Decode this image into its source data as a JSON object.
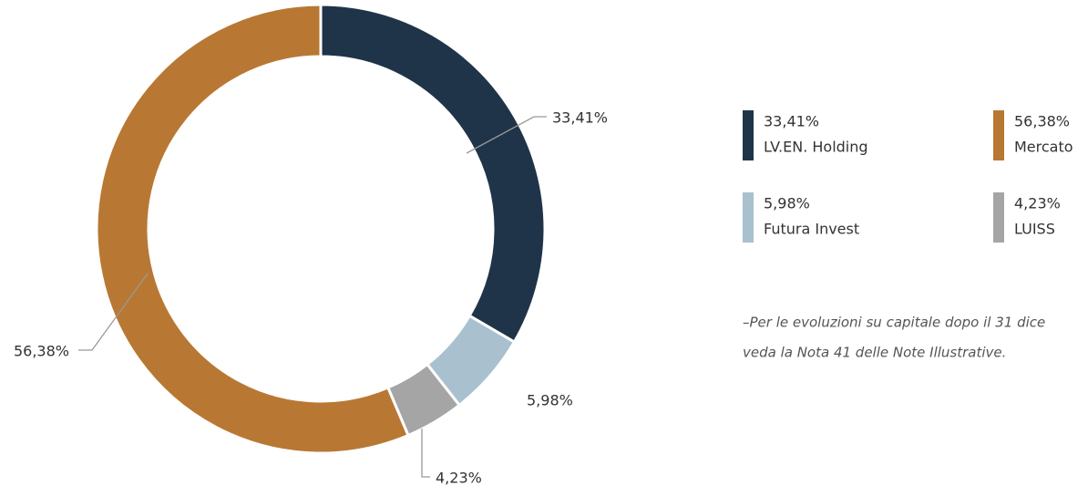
{
  "chart_data": {
    "type": "pie",
    "donut": true,
    "categories": [
      "LV.EN. Holding",
      "Futura Invest",
      "LUISS",
      "Mercato"
    ],
    "values": [
      33.41,
      5.98,
      4.23,
      56.38
    ],
    "value_labels": [
      "33,41%",
      "5,98%",
      "4,23%",
      "56,38%"
    ],
    "colors": [
      "#1f3449",
      "#a9c0cf",
      "#a5a5a5",
      "#b87833"
    ]
  },
  "note": [
    "–Per le evoluzioni su capitale dopo il 31 dice",
    "veda la Nota 41 delle Note Illustrative."
  ]
}
